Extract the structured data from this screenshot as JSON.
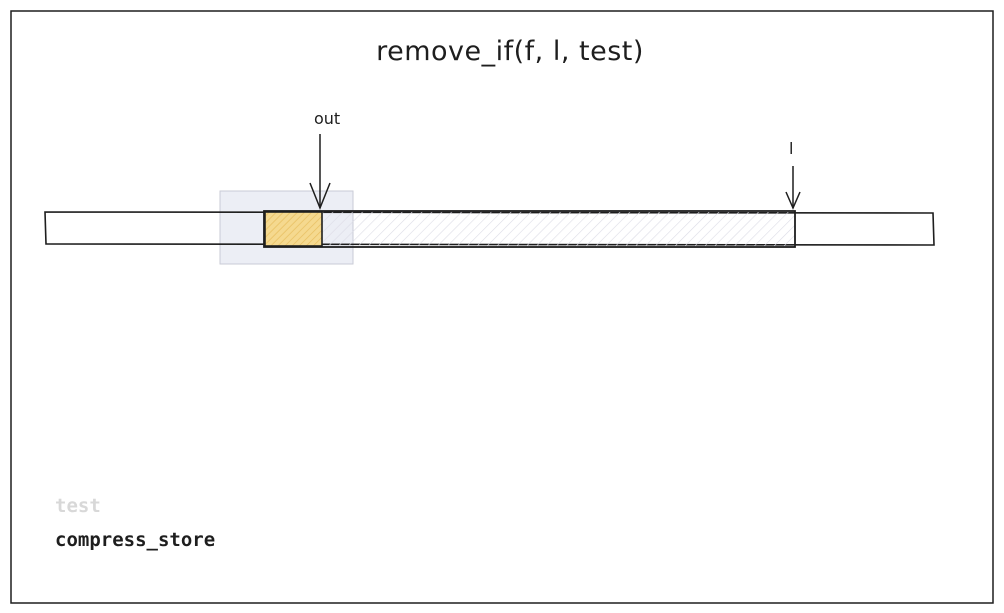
{
  "diagram": {
    "title": "remove_if(f, l, test)",
    "pointers": {
      "out_label": "out",
      "last_label": "l"
    },
    "legend": {
      "faded_label": "test",
      "active_label": "compress_store"
    },
    "colors": {
      "stroke": "#1e1e1e",
      "highlight_fill": "#f2cf7e",
      "selection_fill": "#e8eaf3",
      "range_hatch": "#dcdce6",
      "faded_text": "#d8d8d8"
    }
  }
}
